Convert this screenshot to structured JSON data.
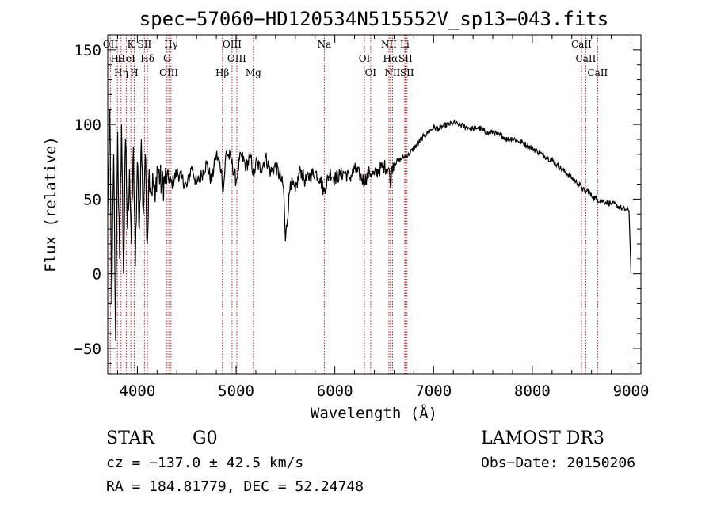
{
  "chart_data": {
    "type": "line",
    "title": "spec−57060−HD120534N515552V_sp13−043.fits",
    "xlabel": "Wavelength (Å)",
    "ylabel": "Flux (relative)",
    "xlim": [
      3700,
      9100
    ],
    "ylim": [
      -67,
      160
    ],
    "x_ticks": [
      4000,
      5000,
      6000,
      7000,
      8000,
      9000
    ],
    "y_ticks": [
      -50,
      0,
      50,
      100,
      150
    ],
    "grid": false,
    "spectral_lines": [
      {
        "label": "OII",
        "wavelength": 3727
      },
      {
        "label": "Hθ",
        "wavelength": 3798
      },
      {
        "label": "Hη",
        "wavelength": 3835
      },
      {
        "label": "K",
        "wavelength": 3934
      },
      {
        "label": "HeI",
        "wavelength": 3889
      },
      {
        "label": "H",
        "wavelength": 3969
      },
      {
        "label": "SII",
        "wavelength": 4072
      },
      {
        "label": "Hδ",
        "wavelength": 4102
      },
      {
        "label": "OIII",
        "wavelength": 4319
      },
      {
        "label": "Hγ",
        "wavelength": 4341
      },
      {
        "label": "G",
        "wavelength": 4300
      },
      {
        "label": "Hβ",
        "wavelength": 4861
      },
      {
        "label": "OIII",
        "wavelength": 4959
      },
      {
        "label": "OIII",
        "wavelength": 5007
      },
      {
        "label": "Mg",
        "wavelength": 5175
      },
      {
        "label": "Na",
        "wavelength": 5894
      },
      {
        "label": "OI",
        "wavelength": 6300
      },
      {
        "label": "OI",
        "wavelength": 6363
      },
      {
        "label": "NII",
        "wavelength": 6548
      },
      {
        "label": "Hα",
        "wavelength": 6563
      },
      {
        "label": "NII",
        "wavelength": 6584
      },
      {
        "label": "Li",
        "wavelength": 6708
      },
      {
        "label": "SII",
        "wavelength": 6716
      },
      {
        "label": "SII",
        "wavelength": 6731
      },
      {
        "label": "CaII",
        "wavelength": 8498
      },
      {
        "label": "CaII",
        "wavelength": 8542
      },
      {
        "label": "CaII",
        "wavelength": 8662
      }
    ],
    "series": [
      {
        "name": "flux",
        "x": [
          3700,
          3720,
          3740,
          3760,
          3780,
          3800,
          3820,
          3840,
          3860,
          3880,
          3900,
          3920,
          3940,
          3960,
          3980,
          4000,
          4020,
          4040,
          4060,
          4080,
          4100,
          4120,
          4140,
          4160,
          4180,
          4200,
          4250,
          4300,
          4350,
          4400,
          4450,
          4500,
          4550,
          4600,
          4650,
          4700,
          4750,
          4800,
          4850,
          4870,
          4900,
          4950,
          5000,
          5050,
          5100,
          5150,
          5180,
          5200,
          5250,
          5300,
          5350,
          5400,
          5450,
          5480,
          5500,
          5550,
          5600,
          5650,
          5700,
          5750,
          5800,
          5850,
          5890,
          5950,
          6000,
          6050,
          6100,
          6150,
          6200,
          6250,
          6300,
          6350,
          6400,
          6450,
          6500,
          6550,
          6563,
          6580,
          6600,
          6650,
          6700,
          6750,
          6800,
          6850,
          6900,
          6950,
          7000,
          7050,
          7100,
          7150,
          7200,
          7250,
          7300,
          7350,
          7400,
          7450,
          7500,
          7550,
          7600,
          7650,
          7700,
          7750,
          7800,
          7850,
          7900,
          7950,
          8000,
          8050,
          8100,
          8150,
          8200,
          8250,
          8300,
          8350,
          8400,
          8450,
          8500,
          8540,
          8560,
          8600,
          8650,
          8700,
          8750,
          8800,
          8850,
          8900,
          8950,
          8980,
          9000
        ],
        "values": [
          40,
          110,
          -20,
          80,
          -45,
          95,
          10,
          100,
          0,
          90,
          30,
          70,
          20,
          85,
          5,
          75,
          30,
          90,
          40,
          80,
          20,
          70,
          55,
          62,
          48,
          72,
          58,
          66,
          60,
          68,
          64,
          58,
          72,
          60,
          66,
          74,
          62,
          80,
          70,
          55,
          82,
          76,
          62,
          80,
          72,
          78,
          64,
          75,
          70,
          78,
          68,
          72,
          64,
          58,
          22,
          62,
          55,
          70,
          62,
          66,
          68,
          64,
          55,
          68,
          64,
          66,
          68,
          64,
          70,
          66,
          62,
          68,
          66,
          70,
          72,
          70,
          58,
          72,
          74,
          76,
          78,
          80,
          84,
          88,
          92,
          95,
          98,
          97,
          99,
          100,
          101,
          100,
          99,
          98,
          97,
          98,
          96,
          94,
          95,
          93,
          92,
          90,
          91,
          89,
          88,
          86,
          84,
          82,
          80,
          78,
          76,
          73,
          70,
          67,
          64,
          61,
          58,
          54,
          56,
          52,
          50,
          49,
          48,
          47,
          46,
          44,
          43,
          42,
          0
        ]
      }
    ]
  },
  "info": {
    "obj_class": "STAR",
    "subclass": "G0",
    "survey": "LAMOST DR3",
    "cz": "cz = −137.0 ± 42.5 km/s",
    "obs_date": "Obs−Date: 20150206",
    "coords": "RA = 184.81779, DEC =  52.24748"
  }
}
